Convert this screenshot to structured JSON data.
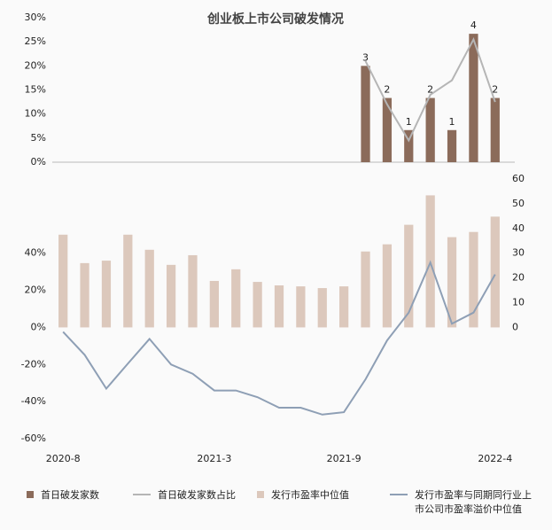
{
  "chart_data": [
    {
      "type": "bar",
      "title": "创业板上市公司破发情况",
      "ylim": [
        0,
        30
      ],
      "yticks": [
        {
          "value": 0,
          "label": "0%"
        },
        {
          "value": 5,
          "label": "5%"
        },
        {
          "value": 10,
          "label": "10%"
        },
        {
          "value": 15,
          "label": "15%"
        },
        {
          "value": 20,
          "label": "20%"
        },
        {
          "value": 25,
          "label": "25%"
        },
        {
          "value": 30,
          "label": "30%"
        }
      ],
      "y2lim": [
        0,
        4.5
      ],
      "series": [
        {
          "name": "首日破发家数",
          "type": "bar",
          "axis": "y2",
          "color": "#8b6b5a",
          "show_labels": true,
          "values": [
            null,
            null,
            null,
            null,
            null,
            null,
            null,
            null,
            null,
            null,
            null,
            null,
            null,
            null,
            3,
            2,
            1,
            2,
            1,
            4,
            2
          ]
        },
        {
          "name": "首日破发家数占比",
          "type": "line",
          "color": "#b5b5b5",
          "values": [
            null,
            null,
            null,
            null,
            null,
            null,
            null,
            null,
            null,
            null,
            null,
            null,
            null,
            null,
            21,
            12,
            4.5,
            14,
            17,
            25.5,
            12.5
          ]
        }
      ]
    },
    {
      "type": "bar",
      "categories": [
        "2020-8",
        null,
        null,
        null,
        null,
        null,
        null,
        "2021-3",
        null,
        null,
        null,
        null,
        null,
        "2021-9",
        null,
        null,
        null,
        null,
        null,
        null,
        "2022-4"
      ],
      "ylim": [
        -60,
        80
      ],
      "yticks": [
        {
          "value": -60,
          "label": "-60%"
        },
        {
          "value": -40,
          "label": "-40%"
        },
        {
          "value": -20,
          "label": "-20%"
        },
        {
          "value": 0,
          "label": "0%"
        },
        {
          "value": 20,
          "label": "20%"
        },
        {
          "value": 40,
          "label": "40%"
        }
      ],
      "y2lim": [
        -45,
        60
      ],
      "y2ticks": [
        0,
        10,
        20,
        30,
        40,
        50,
        60
      ],
      "series": [
        {
          "name": "发行市盈率中位值",
          "type": "bar",
          "axis": "y2",
          "color": "#dcc8bc",
          "values": [
            37.5,
            26,
            27,
            37.5,
            31.4,
            25.3,
            29.2,
            18.8,
            23.5,
            18.4,
            17,
            16.6,
            15.9,
            16.6,
            30.7,
            33.6,
            41.5,
            53.4,
            36.5,
            38.6,
            44.8
          ]
        },
        {
          "name": "发行市盈率与同期同行业上市公司市盈率溢价中位值",
          "type": "line",
          "color": "#8e9fb5",
          "values": [
            -2.4,
            -14.8,
            -33,
            -19.5,
            -6.2,
            -20,
            -25,
            -34,
            -34,
            -37.6,
            -43.3,
            -43.3,
            -47,
            -45.7,
            -28,
            -7,
            8,
            35,
            2,
            8,
            28.6
          ]
        }
      ]
    }
  ]
}
